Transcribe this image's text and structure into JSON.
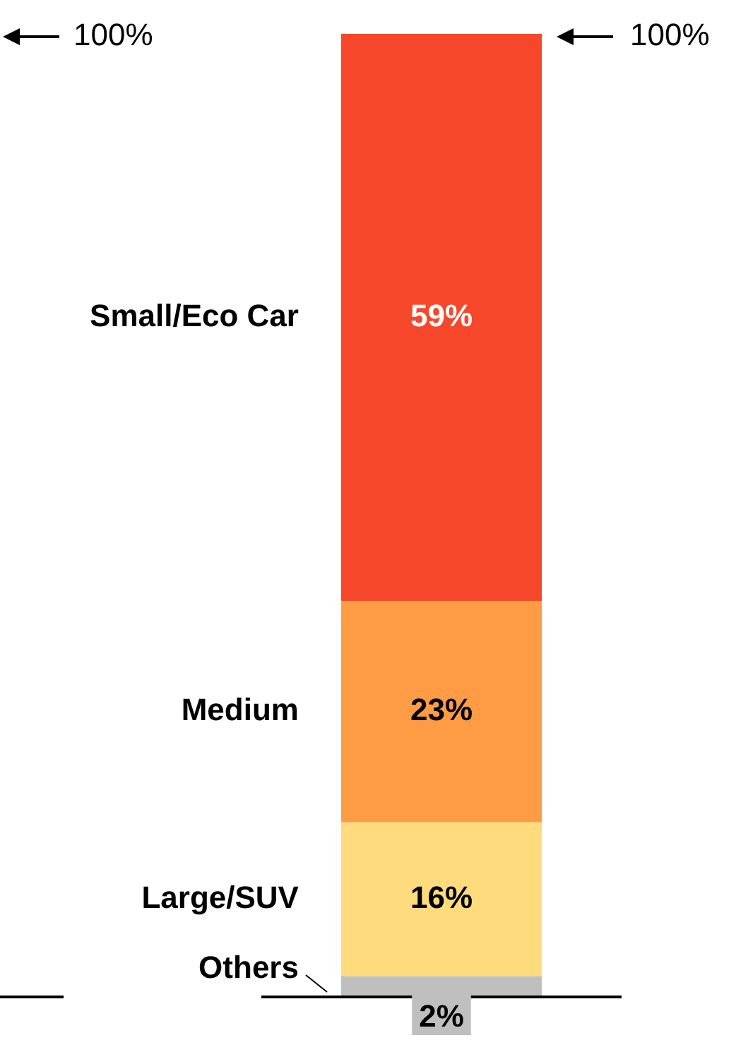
{
  "chart_data": {
    "type": "bar",
    "stacked": true,
    "categories": [
      null
    ],
    "series": [
      {
        "name": "Others",
        "color": "#bfbfbf",
        "values": [
          2
        ],
        "value_labels": [
          "2%"
        ]
      },
      {
        "name": "Large/SUV",
        "color": "#fedb7c",
        "values": [
          16
        ],
        "value_labels": [
          "16%"
        ]
      },
      {
        "name": "Medium",
        "color": "#fd9c45",
        "values": [
          23
        ],
        "value_labels": [
          "23%"
        ]
      },
      {
        "name": "Small/Eco Car",
        "color": "#f7472b",
        "values": [
          59
        ],
        "value_labels": [
          "59%"
        ]
      }
    ],
    "tick_labels": false,
    "legend": false,
    "annotations": [
      "100%",
      "100%"
    ]
  }
}
